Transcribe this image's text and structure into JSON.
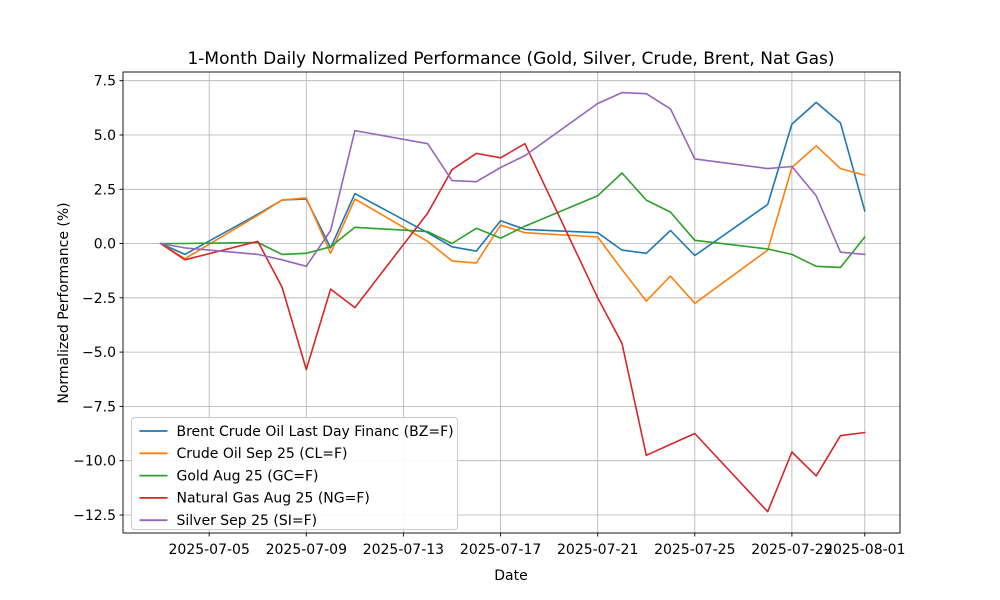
{
  "title": "1-Month Daily Normalized Performance (Gold, Silver, Crude, Brent, Nat Gas)",
  "axes": {
    "xlabel": "Date",
    "ylabel": "Normalized Performance (%)"
  },
  "chart_data": {
    "type": "line",
    "grid": true,
    "legend_position": "lower left",
    "x_dates": [
      "2025-07-03",
      "2025-07-04",
      "2025-07-07",
      "2025-07-08",
      "2025-07-09",
      "2025-07-10",
      "2025-07-11",
      "2025-07-14",
      "2025-07-15",
      "2025-07-16",
      "2025-07-17",
      "2025-07-18",
      "2025-07-21",
      "2025-07-22",
      "2025-07-23",
      "2025-07-24",
      "2025-07-25",
      "2025-07-28",
      "2025-07-29",
      "2025-07-30",
      "2025-07-31",
      "2025-08-01"
    ],
    "x_day_offsets": [
      0,
      1,
      4,
      5,
      6,
      7,
      8,
      11,
      12,
      13,
      14,
      15,
      18,
      19,
      20,
      21,
      22,
      25,
      26,
      27,
      28,
      29
    ],
    "xlim_days": [
      -1.55,
      30.45
    ],
    "ylim": [
      -13.33,
      7.9
    ],
    "series": [
      {
        "name": "Brent Crude Oil Last Day Financ (BZ=F)",
        "color": "#1f77b4",
        "values": [
          0,
          -0.5,
          1.35,
          2.0,
          2.05,
          -0.2,
          2.3,
          0.5,
          -0.15,
          -0.35,
          1.05,
          0.65,
          0.5,
          -0.3,
          -0.45,
          0.6,
          -0.55,
          1.8,
          5.5,
          6.5,
          5.55,
          1.5
        ]
      },
      {
        "name": "Crude Oil Sep 25 (CL=F)",
        "color": "#ff7f0e",
        "values": [
          0,
          -0.7,
          1.3,
          2.0,
          2.1,
          -0.45,
          2.05,
          0.1,
          -0.8,
          -0.9,
          0.85,
          0.5,
          0.3,
          -1.2,
          -2.65,
          -1.5,
          -2.75,
          -0.3,
          3.5,
          4.5,
          3.45,
          3.15
        ]
      },
      {
        "name": "Gold Aug 25 (GC=F)",
        "color": "#2ca02c",
        "values": [
          0,
          0,
          0.05,
          -0.5,
          -0.45,
          -0.15,
          0.75,
          0.55,
          0.0,
          0.7,
          0.25,
          0.8,
          2.2,
          3.25,
          2.0,
          1.45,
          0.15,
          -0.25,
          -0.5,
          -1.05,
          -1.1,
          0.3
        ]
      },
      {
        "name": "Natural Gas Aug 25 (NG=F)",
        "color": "#d62728",
        "values": [
          0,
          -0.75,
          0.1,
          -2.0,
          -5.8,
          -2.1,
          -2.95,
          1.4,
          3.4,
          4.15,
          3.95,
          4.6,
          -2.5,
          -4.6,
          -9.75,
          -9.25,
          -8.75,
          -12.35,
          -9.6,
          -10.7,
          -8.85,
          -8.7
        ]
      },
      {
        "name": "Silver Sep 25 (SI=F)",
        "color": "#9467bd",
        "values": [
          0,
          -0.2,
          -0.5,
          -0.75,
          -1.05,
          0.6,
          5.2,
          4.6,
          2.9,
          2.85,
          3.5,
          4.05,
          6.45,
          6.95,
          6.9,
          6.2,
          3.9,
          3.45,
          3.55,
          2.2,
          -0.4,
          -0.5
        ]
      }
    ],
    "x_ticks": {
      "day_offsets": [
        2,
        6,
        10,
        14,
        18,
        22,
        26,
        29
      ],
      "labels": [
        "2025-07-05",
        "2025-07-09",
        "2025-07-13",
        "2025-07-17",
        "2025-07-21",
        "2025-07-25",
        "2025-07-29",
        "2025-08-01"
      ]
    },
    "y_ticks": {
      "values": [
        7.5,
        5.0,
        2.5,
        0.0,
        -2.5,
        -5.0,
        -7.5,
        -10.0,
        -12.5
      ],
      "labels": [
        "7.5",
        "5.0",
        "2.5",
        "0.0",
        "−2.5",
        "−5.0",
        "−7.5",
        "−10.0",
        "−12.5"
      ]
    },
    "colors": {
      "grid": "#b0b0b0",
      "spine": "#000000",
      "legend_border": "#cccccc",
      "background": "#ffffff"
    }
  }
}
